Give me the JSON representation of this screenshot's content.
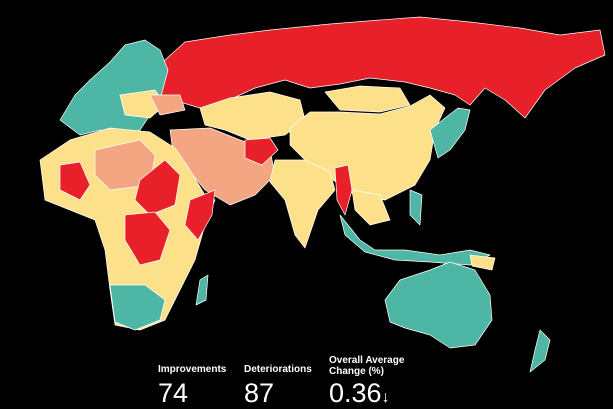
{
  "legend_colors": {
    "large_deterioration": "#e8202a",
    "deterioration": "#f4a582",
    "slight_change": "#fde08a",
    "improvement": "#4db6a4"
  },
  "stats": {
    "improvements_label": "Improvements",
    "improvements_value": "74",
    "deteriorations_label": "Deteriorations",
    "deteriorations_value": "87",
    "average_label": "Overall Average Change (%)",
    "average_value": "0.36",
    "average_direction_icon": "arrow-down-icon",
    "average_arrow": "↓"
  }
}
